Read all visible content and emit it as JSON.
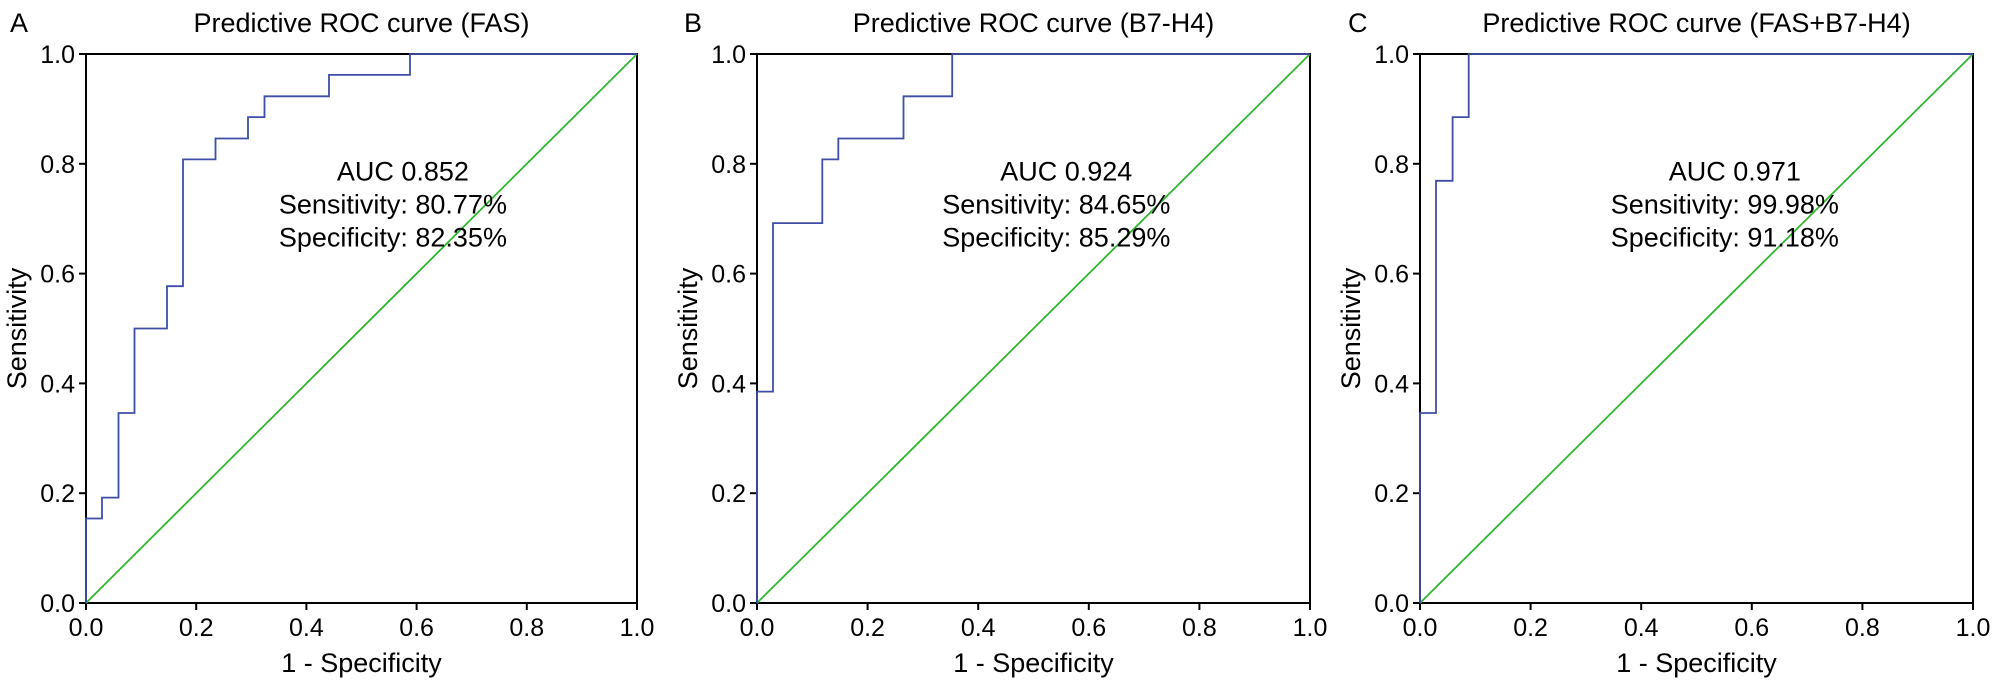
{
  "chart_data": [
    {
      "type": "line",
      "panel_label": "A",
      "title": "Predictive ROC curve (FAS)",
      "xlabel": "1 - Specificity",
      "ylabel": "Sensitivity",
      "xlim": [
        0,
        1
      ],
      "ylim": [
        0,
        1
      ],
      "ticks": [
        "0.0",
        "0.2",
        "0.4",
        "0.6",
        "0.8",
        "1.0"
      ],
      "annotation": [
        "AUC 0.852",
        "Sensitivity: 80.77%",
        "Specificity: 82.35%"
      ],
      "series": [
        {
          "name": "ROC",
          "color": "#3f4fa8",
          "points": [
            [
              0,
              0
            ],
            [
              0,
              0.154
            ],
            [
              0.029,
              0.154
            ],
            [
              0.029,
              0.192
            ],
            [
              0.059,
              0.192
            ],
            [
              0.059,
              0.346
            ],
            [
              0.088,
              0.346
            ],
            [
              0.088,
              0.5
            ],
            [
              0.147,
              0.5
            ],
            [
              0.147,
              0.577
            ],
            [
              0.176,
              0.577
            ],
            [
              0.176,
              0.808
            ],
            [
              0.235,
              0.808
            ],
            [
              0.235,
              0.846
            ],
            [
              0.294,
              0.846
            ],
            [
              0.294,
              0.885
            ],
            [
              0.324,
              0.885
            ],
            [
              0.324,
              0.923
            ],
            [
              0.441,
              0.923
            ],
            [
              0.441,
              0.962
            ],
            [
              0.588,
              0.962
            ],
            [
              0.588,
              1.0
            ],
            [
              1.0,
              1.0
            ]
          ]
        },
        {
          "name": "Reference",
          "color": "#2eb82e",
          "points": [
            [
              0,
              0
            ],
            [
              1,
              1
            ]
          ]
        }
      ]
    },
    {
      "type": "line",
      "panel_label": "B",
      "title": "Predictive ROC curve (B7-H4)",
      "xlabel": "1 - Specificity",
      "ylabel": "Sensitivity",
      "xlim": [
        0,
        1
      ],
      "ylim": [
        0,
        1
      ],
      "ticks": [
        "0.0",
        "0.2",
        "0.4",
        "0.6",
        "0.8",
        "1.0"
      ],
      "annotation": [
        "AUC 0.924",
        "Sensitivity: 84.65%",
        "Specificity: 85.29%"
      ],
      "series": [
        {
          "name": "ROC",
          "color": "#3f4fa8",
          "points": [
            [
              0,
              0
            ],
            [
              0,
              0.385
            ],
            [
              0.029,
              0.385
            ],
            [
              0.029,
              0.692
            ],
            [
              0.118,
              0.692
            ],
            [
              0.118,
              0.808
            ],
            [
              0.147,
              0.808
            ],
            [
              0.147,
              0.846
            ],
            [
              0.265,
              0.846
            ],
            [
              0.265,
              0.923
            ],
            [
              0.353,
              0.923
            ],
            [
              0.353,
              1.0
            ],
            [
              1.0,
              1.0
            ]
          ]
        },
        {
          "name": "Reference",
          "color": "#2eb82e",
          "points": [
            [
              0,
              0
            ],
            [
              1,
              1
            ]
          ]
        }
      ]
    },
    {
      "type": "line",
      "panel_label": "C",
      "title": "Predictive ROC curve (FAS+B7-H4)",
      "xlabel": "1 - Specificity",
      "ylabel": "Sensitivity",
      "xlim": [
        0,
        1
      ],
      "ylim": [
        0,
        1
      ],
      "ticks": [
        "0.0",
        "0.2",
        "0.4",
        "0.6",
        "0.8",
        "1.0"
      ],
      "annotation": [
        "AUC 0.971",
        "Sensitivity: 99.98%",
        "Specificity: 91.18%"
      ],
      "series": [
        {
          "name": "ROC",
          "color": "#3f4fa8",
          "points": [
            [
              0,
              0
            ],
            [
              0,
              0.346
            ],
            [
              0.029,
              0.346
            ],
            [
              0.029,
              0.769
            ],
            [
              0.059,
              0.769
            ],
            [
              0.059,
              0.885
            ],
            [
              0.088,
              0.885
            ],
            [
              0.088,
              1.0
            ],
            [
              1.0,
              1.0
            ]
          ]
        },
        {
          "name": "Reference",
          "color": "#2eb82e",
          "points": [
            [
              0,
              0
            ],
            [
              1,
              1
            ]
          ]
        }
      ]
    }
  ]
}
